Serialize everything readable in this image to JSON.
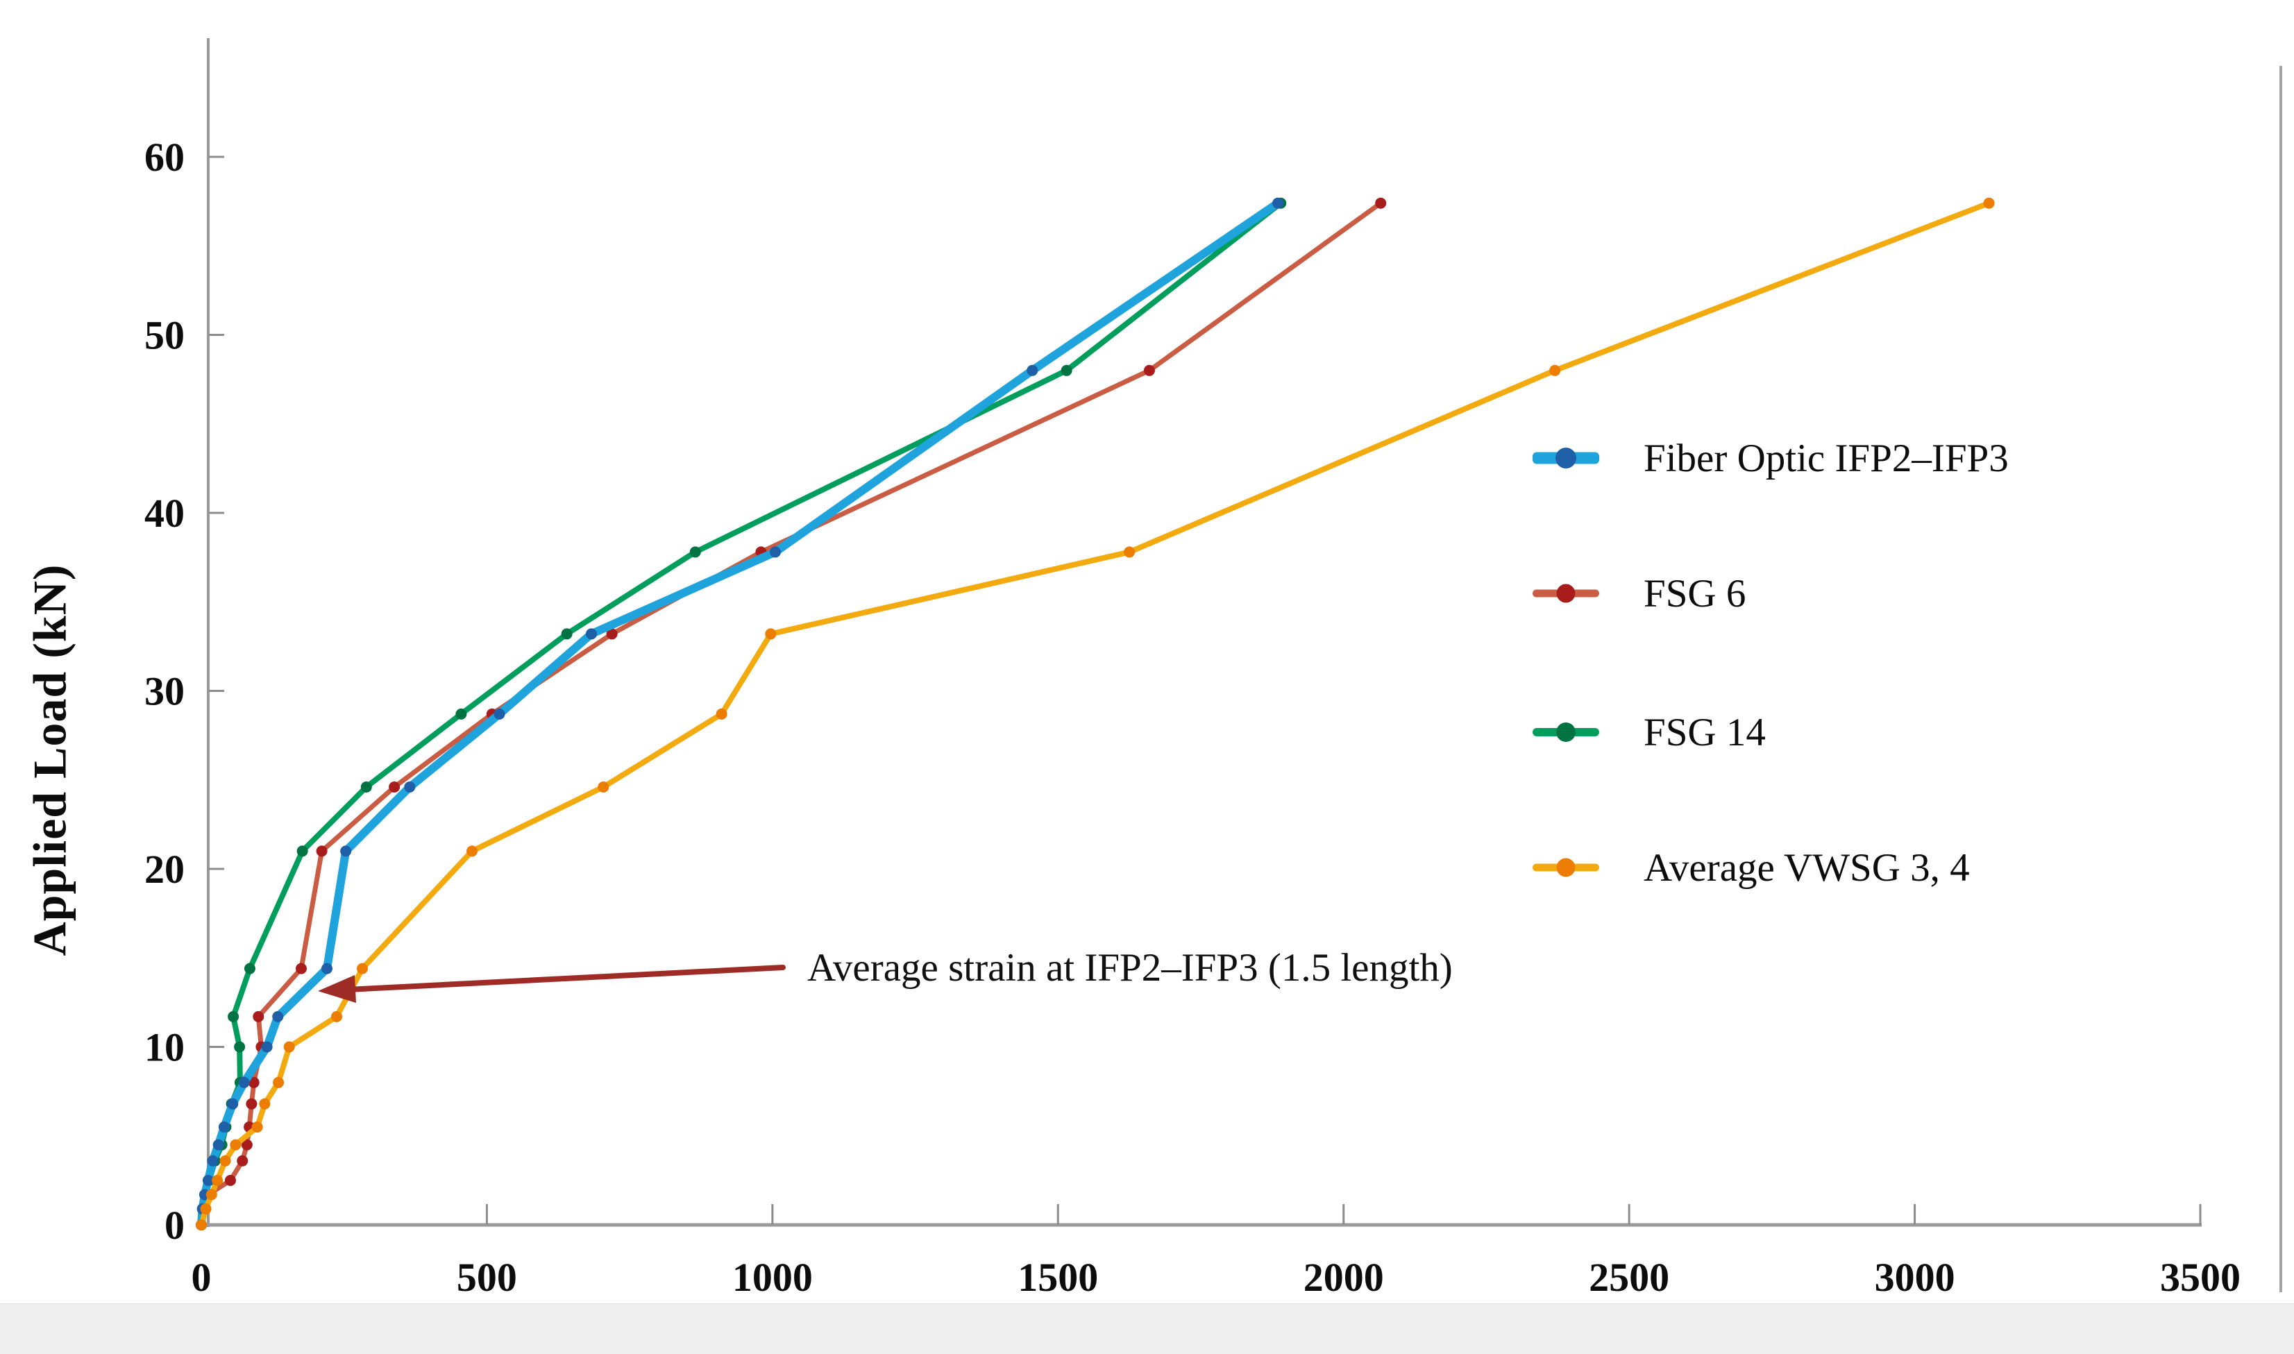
{
  "figure": {
    "background": "#ffffff",
    "y_axis_title": "Applied Load (kN)",
    "annotation": {
      "text": "Average strain at IFP2–IFP3 (1.5 length)",
      "arrow_color": "#9e2b25",
      "text_color": "#101010"
    },
    "axis_color": "#9a9a9a",
    "tick_color": "#8c8c8c",
    "tick_label_color": "#0c0c0c"
  },
  "legend": {
    "items": [
      {
        "label": "Fiber Optic IFP2–IFP3",
        "line_color": "#1fa3dc",
        "marker_color": "#1f5fa8",
        "line_thickness": 17,
        "dot_size": 30
      },
      {
        "label": "FSG 6",
        "line_color": "#c95c43",
        "marker_color": "#a81c1c",
        "line_thickness": 11,
        "dot_size": 27
      },
      {
        "label": "FSG 14",
        "line_color": "#009e5c",
        "marker_color": "#007343",
        "line_thickness": 12,
        "dot_size": 28
      },
      {
        "label": "Average VWSG 3, 4",
        "line_color": "#f3aa0f",
        "marker_color": "#ec7d00",
        "line_thickness": 11,
        "dot_size": 27
      }
    ]
  },
  "chart_data": {
    "type": "line",
    "title": "",
    "xlabel": "",
    "ylabel": "Applied Load (kN)",
    "xlim": [
      0,
      3500
    ],
    "ylim": [
      0,
      60
    ],
    "x_ticks": [
      0,
      500,
      1000,
      1500,
      2000,
      2500,
      3000,
      3500
    ],
    "y_ticks": [
      0,
      10,
      20,
      30,
      40,
      50,
      60
    ],
    "grid": false,
    "legend_position": "right-inside",
    "series": [
      {
        "name": "FSG 14",
        "line_color": "#009e5c",
        "marker_color": "#007343",
        "line_width": 8,
        "marker_radius": 8,
        "points": [
          [
            0,
            0
          ],
          [
            3,
            0.9
          ],
          [
            8,
            1.7
          ],
          [
            14,
            2.5
          ],
          [
            24,
            3.6
          ],
          [
            36,
            4.5
          ],
          [
            43,
            5.5
          ],
          [
            53,
            6.8
          ],
          [
            68,
            8
          ],
          [
            67,
            10
          ],
          [
            56,
            11.7
          ],
          [
            85,
            14.4
          ],
          [
            177,
            21
          ],
          [
            289,
            24.6
          ],
          [
            455,
            28.7
          ],
          [
            640,
            33.2
          ],
          [
            865,
            37.8
          ],
          [
            1515,
            48
          ],
          [
            1890,
            57.4
          ]
        ]
      },
      {
        "name": "FSG 6",
        "line_color": "#c95c43",
        "marker_color": "#a81c1c",
        "line_width": 7,
        "marker_radius": 8,
        "points": [
          [
            0,
            0
          ],
          [
            4,
            0.9
          ],
          [
            12,
            1.7
          ],
          [
            51,
            2.5
          ],
          [
            72,
            3.6
          ],
          [
            80,
            4.5
          ],
          [
            84,
            5.5
          ],
          [
            88,
            6.8
          ],
          [
            92,
            8
          ],
          [
            105,
            10
          ],
          [
            100,
            11.7
          ],
          [
            175,
            14.4
          ],
          [
            211,
            21
          ],
          [
            338,
            24.6
          ],
          [
            509,
            28.7
          ],
          [
            719,
            33.2
          ],
          [
            980,
            37.8
          ],
          [
            1660,
            48
          ],
          [
            2065,
            57.4
          ]
        ]
      },
      {
        "name": "Fiber Optic IFP2–IFP3",
        "line_color": "#1fa3dc",
        "marker_color": "#1f5fa8",
        "line_width": 12,
        "marker_radius": 8,
        "points": [
          [
            0,
            0
          ],
          [
            2,
            0.9
          ],
          [
            6,
            1.7
          ],
          [
            12,
            2.5
          ],
          [
            20,
            3.6
          ],
          [
            30,
            4.5
          ],
          [
            40,
            5.5
          ],
          [
            55,
            6.8
          ],
          [
            75,
            8
          ],
          [
            115,
            10
          ],
          [
            134,
            11.7
          ],
          [
            220,
            14.4
          ],
          [
            253,
            21
          ],
          [
            365,
            24.6
          ],
          [
            522,
            28.7
          ],
          [
            683,
            33.2
          ],
          [
            1005,
            37.8
          ],
          [
            1455,
            48
          ],
          [
            1885,
            57.4
          ]
        ]
      },
      {
        "name": "Average VWSG 3, 4",
        "line_color": "#f3aa0f",
        "marker_color": "#ec7d00",
        "line_width": 8,
        "marker_radius": 8,
        "points": [
          [
            0,
            0
          ],
          [
            8,
            0.9
          ],
          [
            18,
            1.7
          ],
          [
            28,
            2.5
          ],
          [
            42,
            3.6
          ],
          [
            60,
            4.5
          ],
          [
            98,
            5.5
          ],
          [
            111,
            6.8
          ],
          [
            135,
            8
          ],
          [
            154,
            10
          ],
          [
            237,
            11.7
          ],
          [
            282,
            14.4
          ],
          [
            474,
            21
          ],
          [
            704,
            24.6
          ],
          [
            911,
            28.7
          ],
          [
            997,
            33.2
          ],
          [
            1625,
            37.8
          ],
          [
            2370,
            48
          ],
          [
            3130,
            57.4
          ]
        ]
      }
    ]
  }
}
